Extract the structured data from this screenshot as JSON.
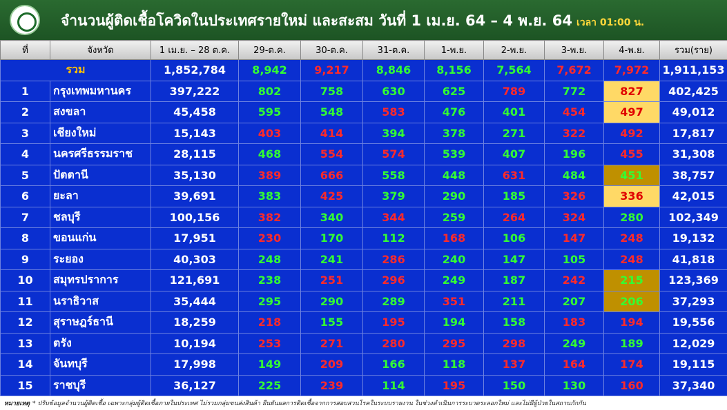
{
  "header": {
    "title": "จำนวนผู้ติดเชื้อโควิดในประเทศรายใหม่ และสะสม วันที่ 1 เม.ย. 64 – 4 พ.ย. 64",
    "time": "เวลา 01:00 น."
  },
  "table": {
    "columns": [
      "ที่",
      "จังหวัด",
      "1 เม.ย. – 28 ต.ค.",
      "29-ต.ค.",
      "30-ต.ค.",
      "31-ต.ค.",
      "1-พ.ย.",
      "2-พ.ย.",
      "3-พ.ย.",
      "4-พ.ย.",
      "รวม(ราย)"
    ],
    "total_row": {
      "label": "รวม",
      "cumulative": "1,852,784",
      "daily": [
        "8,942",
        "9,217",
        "8,846",
        "8,156",
        "7,564",
        "7,672",
        "7,972"
      ],
      "colors": [
        "#33ff33",
        "#ff2a2a",
        "#33ff33",
        "#33ff33",
        "#33ff33",
        "#ff2a2a",
        "#ff2a2a"
      ],
      "total": "1,911,153"
    },
    "rows": [
      {
        "no": "1",
        "province": "กรุงเทพมหานคร",
        "cumulative": "397,222",
        "daily": [
          "802",
          "758",
          "630",
          "625",
          "789",
          "772",
          "827"
        ],
        "colors": [
          "#33ff33",
          "#33ff33",
          "#33ff33",
          "#33ff33",
          "#ff2a2a",
          "#33ff33",
          "#e00000"
        ],
        "highlight": "#ffd966",
        "total": "402,425"
      },
      {
        "no": "2",
        "province": "สงขลา",
        "cumulative": "45,458",
        "daily": [
          "595",
          "548",
          "583",
          "476",
          "401",
          "454",
          "497"
        ],
        "colors": [
          "#33ff33",
          "#33ff33",
          "#ff2a2a",
          "#33ff33",
          "#33ff33",
          "#ff2a2a",
          "#e00000"
        ],
        "highlight": "#ffd966",
        "total": "49,012"
      },
      {
        "no": "3",
        "province": "เชียงใหม่",
        "cumulative": "15,143",
        "daily": [
          "403",
          "414",
          "394",
          "378",
          "271",
          "322",
          "492"
        ],
        "colors": [
          "#ff2a2a",
          "#ff2a2a",
          "#33ff33",
          "#33ff33",
          "#33ff33",
          "#ff2a2a",
          "#ff2a2a"
        ],
        "highlight": null,
        "total": "17,817"
      },
      {
        "no": "4",
        "province": "นครศรีธรรมราช",
        "cumulative": "28,115",
        "daily": [
          "468",
          "554",
          "574",
          "539",
          "407",
          "196",
          "455"
        ],
        "colors": [
          "#33ff33",
          "#ff2a2a",
          "#ff2a2a",
          "#33ff33",
          "#33ff33",
          "#33ff33",
          "#ff2a2a"
        ],
        "highlight": null,
        "total": "31,308"
      },
      {
        "no": "5",
        "province": "ปัตตานี",
        "cumulative": "35,130",
        "daily": [
          "389",
          "666",
          "558",
          "448",
          "631",
          "484",
          "451"
        ],
        "colors": [
          "#ff2a2a",
          "#ff2a2a",
          "#33ff33",
          "#33ff33",
          "#ff2a2a",
          "#33ff33",
          "#33ff33"
        ],
        "highlight": "#bf9000",
        "total": "38,757"
      },
      {
        "no": "6",
        "province": "ยะลา",
        "cumulative": "39,691",
        "daily": [
          "383",
          "425",
          "379",
          "290",
          "185",
          "326",
          "336"
        ],
        "colors": [
          "#33ff33",
          "#ff2a2a",
          "#33ff33",
          "#33ff33",
          "#33ff33",
          "#ff2a2a",
          "#e00000"
        ],
        "highlight": "#ffd966",
        "total": "42,015"
      },
      {
        "no": "7",
        "province": "ชลบุรี",
        "cumulative": "100,156",
        "daily": [
          "382",
          "340",
          "344",
          "259",
          "264",
          "324",
          "280"
        ],
        "colors": [
          "#ff2a2a",
          "#33ff33",
          "#ff2a2a",
          "#33ff33",
          "#ff2a2a",
          "#ff2a2a",
          "#33ff33"
        ],
        "highlight": null,
        "total": "102,349"
      },
      {
        "no": "8",
        "province": "ขอนแก่น",
        "cumulative": "17,951",
        "daily": [
          "230",
          "170",
          "112",
          "168",
          "106",
          "147",
          "248"
        ],
        "colors": [
          "#ff2a2a",
          "#33ff33",
          "#33ff33",
          "#ff2a2a",
          "#33ff33",
          "#ff2a2a",
          "#ff2a2a"
        ],
        "highlight": null,
        "total": "19,132"
      },
      {
        "no": "9",
        "province": "ระยอง",
        "cumulative": "40,303",
        "daily": [
          "248",
          "241",
          "286",
          "240",
          "147",
          "105",
          "248"
        ],
        "colors": [
          "#33ff33",
          "#33ff33",
          "#ff2a2a",
          "#33ff33",
          "#33ff33",
          "#33ff33",
          "#ff2a2a"
        ],
        "highlight": null,
        "total": "41,818"
      },
      {
        "no": "10",
        "province": "สมุทรปราการ",
        "cumulative": "121,691",
        "daily": [
          "238",
          "251",
          "296",
          "249",
          "187",
          "242",
          "215"
        ],
        "colors": [
          "#33ff33",
          "#ff2a2a",
          "#ff2a2a",
          "#33ff33",
          "#33ff33",
          "#ff2a2a",
          "#33ff33"
        ],
        "highlight": "#bf9000",
        "total": "123,369"
      },
      {
        "no": "11",
        "province": "นราธิวาส",
        "cumulative": "35,444",
        "daily": [
          "295",
          "290",
          "289",
          "351",
          "211",
          "207",
          "206"
        ],
        "colors": [
          "#33ff33",
          "#33ff33",
          "#33ff33",
          "#ff2a2a",
          "#33ff33",
          "#33ff33",
          "#33ff33"
        ],
        "highlight": "#bf9000",
        "total": "37,293"
      },
      {
        "no": "12",
        "province": "สุราษฎร์ธานี",
        "cumulative": "18,259",
        "daily": [
          "218",
          "155",
          "195",
          "194",
          "158",
          "183",
          "194"
        ],
        "colors": [
          "#ff2a2a",
          "#33ff33",
          "#ff2a2a",
          "#33ff33",
          "#33ff33",
          "#ff2a2a",
          "#ff2a2a"
        ],
        "highlight": null,
        "total": "19,556"
      },
      {
        "no": "13",
        "province": "ตรัง",
        "cumulative": "10,194",
        "daily": [
          "253",
          "271",
          "280",
          "295",
          "298",
          "249",
          "189"
        ],
        "colors": [
          "#ff2a2a",
          "#ff2a2a",
          "#ff2a2a",
          "#ff2a2a",
          "#ff2a2a",
          "#33ff33",
          "#33ff33"
        ],
        "highlight": null,
        "total": "12,029"
      },
      {
        "no": "14",
        "province": "จันทบุรี",
        "cumulative": "17,998",
        "daily": [
          "149",
          "209",
          "166",
          "118",
          "137",
          "164",
          "174"
        ],
        "colors": [
          "#33ff33",
          "#ff2a2a",
          "#33ff33",
          "#33ff33",
          "#ff2a2a",
          "#ff2a2a",
          "#ff2a2a"
        ],
        "highlight": null,
        "total": "19,115"
      },
      {
        "no": "15",
        "province": "ราชบุรี",
        "cumulative": "36,127",
        "daily": [
          "225",
          "239",
          "114",
          "195",
          "150",
          "130",
          "160"
        ],
        "colors": [
          "#33ff33",
          "#ff2a2a",
          "#33ff33",
          "#ff2a2a",
          "#33ff33",
          "#33ff33",
          "#ff2a2a"
        ],
        "highlight": null,
        "total": "37,340"
      }
    ]
  },
  "footer": {
    "label": "หมายเหตุ",
    "note": "* ปรับข้อมูลจำนวนผู้ติดเชื้อ เฉพาะกลุ่มผู้ติดเชื้อภายในประเทศ ไม่รวมกลุ่มขนส่งสินค้า ยืนยันผลการติดเชื้อจากการสอบสวนโรคในระบบรายงาน ในช่วงดำเนินการระบาดระลอกใหม่ และไม่มีผู้ป่วยในสถานกักกัน"
  }
}
